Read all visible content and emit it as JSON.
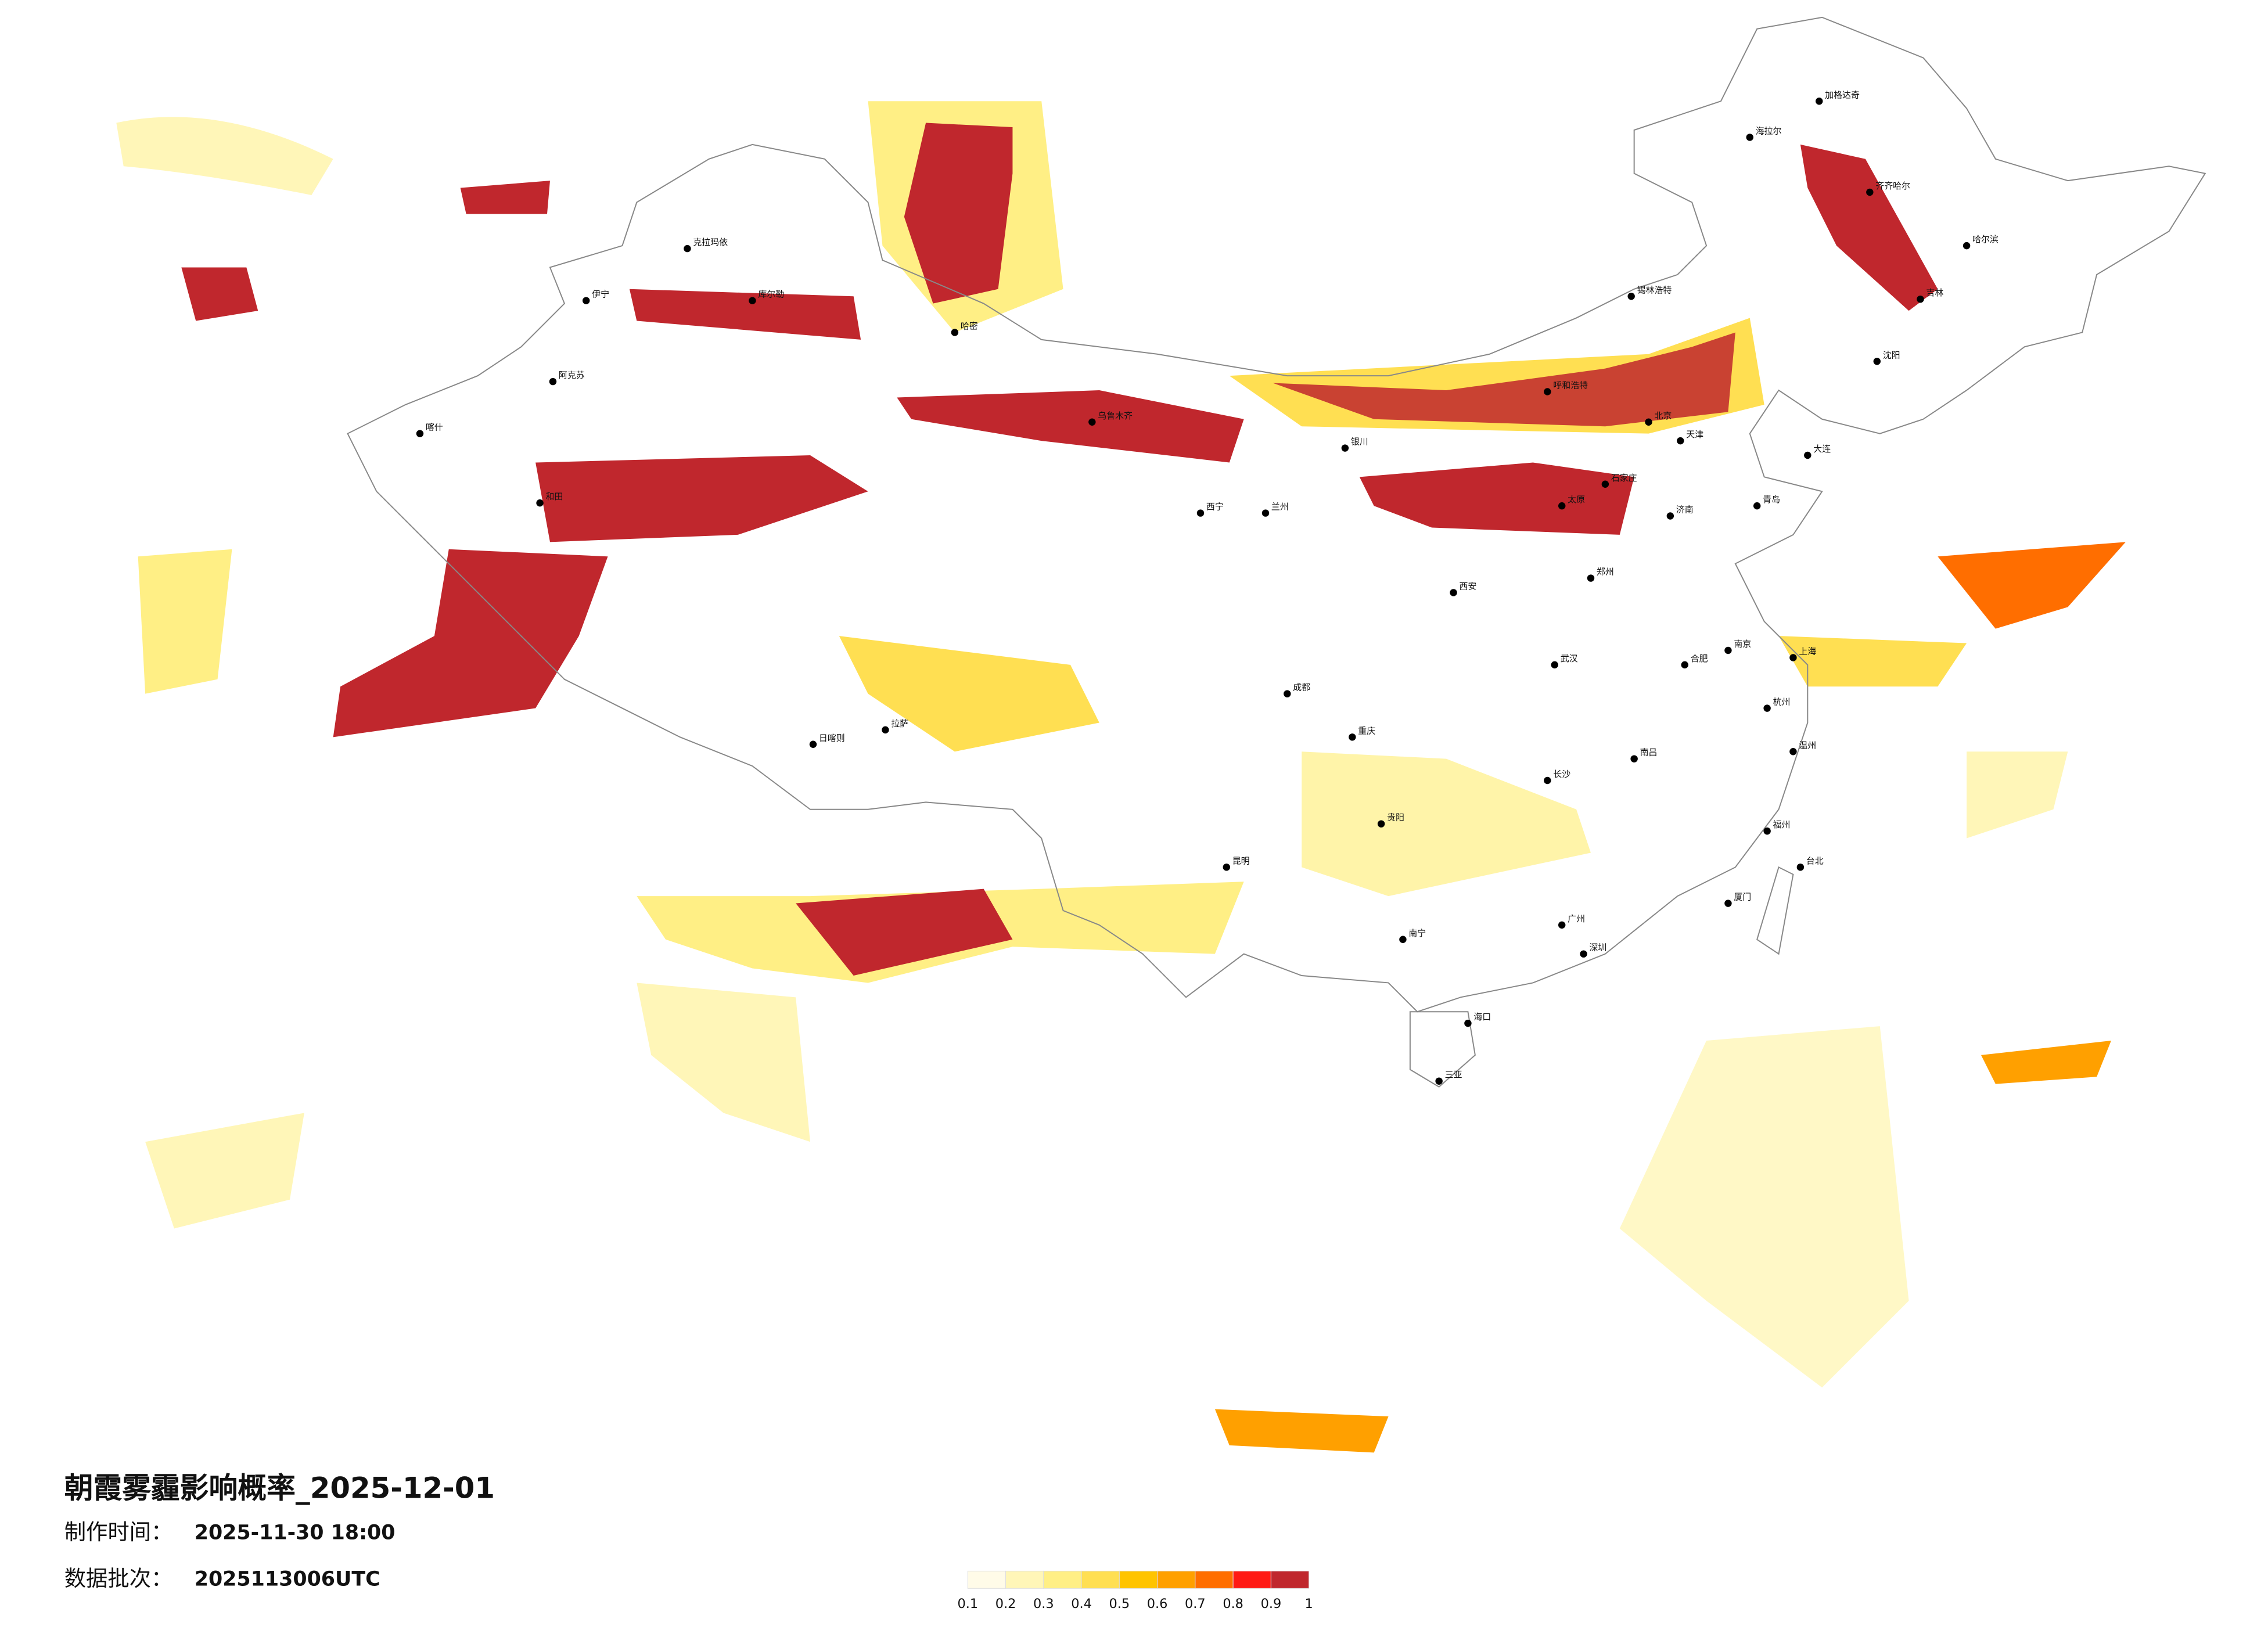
{
  "header": {
    "title": "朝霞雾霾影响概率_2025-12-01",
    "made_label": "制作时间：",
    "made_time": "2025-11-30 18:00",
    "batch_label": "数据批次：",
    "batch": "2025113006UTC"
  },
  "legend": {
    "ticks": [
      0.1,
      0.2,
      0.3,
      0.4,
      0.5,
      0.6,
      0.7,
      0.8,
      0.9,
      1
    ],
    "colors": [
      "#fffbe8",
      "#fff6b8",
      "#ffef85",
      "#ffdf52",
      "#ffc400",
      "#ffa000",
      "#ff6e00",
      "#ff1a14",
      "#c0272d"
    ]
  },
  "cities": [
    "哈尔滨",
    "吉林",
    "沈阳",
    "北京",
    "天津",
    "呼和浩特",
    "太原",
    "石家庄",
    "济南",
    "郑州",
    "西安",
    "兰州",
    "西宁",
    "乌鲁木齐",
    "拉萨",
    "成都",
    "重庆",
    "武汉",
    "长沙",
    "南昌",
    "合肥",
    "南京",
    "上海",
    "杭州",
    "福州",
    "广州",
    "南宁",
    "海口",
    "三亚",
    "昆明",
    "贵阳",
    "台北",
    "喀什",
    "伊宁",
    "克拉玛依",
    "阿克苏",
    "和田",
    "齐齐哈尔",
    "加格达奇",
    "海拉尔",
    "锡林浩特",
    "日喀则",
    "库尔勒",
    "哈密",
    "银川",
    "青岛",
    "大连",
    "厦门",
    "深圳",
    "温州"
  ]
}
